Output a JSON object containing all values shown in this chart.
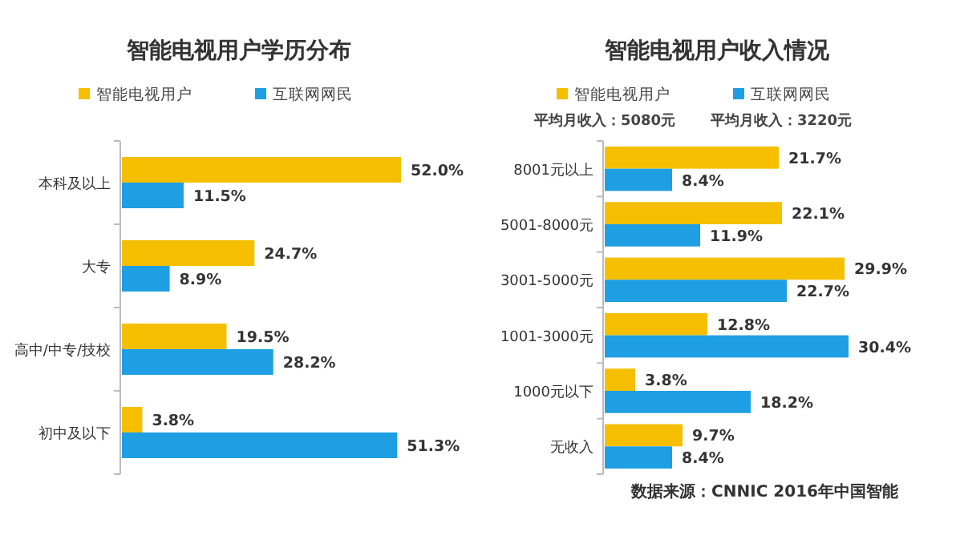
{
  "chart_data": [
    {
      "type": "bar",
      "orientation": "horizontal",
      "title": "智能电视用户学历分布",
      "categories": [
        "本科及以上",
        "大专",
        "高中/中专/技校",
        "初中及以下"
      ],
      "legend": "top",
      "series": [
        {
          "name": "智能电视用户",
          "color": "#f5bf00",
          "values": [
            52.0,
            24.7,
            19.5,
            3.8
          ],
          "value_labels": [
            "52.0%",
            "24.7%",
            "19.5%",
            "3.8%"
          ]
        },
        {
          "name": "互联网网民",
          "color": "#1e9fe3",
          "values": [
            11.5,
            8.9,
            28.2,
            51.3
          ],
          "value_labels": [
            "11.5%",
            "8.9%",
            "28.2%",
            "51.3%"
          ]
        }
      ]
    },
    {
      "type": "bar",
      "orientation": "horizontal",
      "title": "智能电视用户收入情况",
      "categories": [
        "8001元以上",
        "5001-8000元",
        "3001-5000元",
        "1001-3000元",
        "1000元以下",
        "无收入"
      ],
      "legend": "top",
      "annotations": [
        "平均月收入：5080元",
        "平均月收入：3220元",
        "数据来源：CNNIC 2016年中国智能"
      ],
      "series": [
        {
          "name": "智能电视用户",
          "color": "#f5bf00",
          "values": [
            21.7,
            22.1,
            29.9,
            12.8,
            3.8,
            9.7
          ],
          "value_labels": [
            "21.7%",
            "22.1%",
            "29.9%",
            "12.8%",
            "3.8%",
            "9.7%"
          ]
        },
        {
          "name": "互联网网民",
          "color": "#1e9fe3",
          "values": [
            8.4,
            11.9,
            22.7,
            30.4,
            18.2,
            8.4
          ],
          "value_labels": [
            "8.4%",
            "11.9%",
            "22.7%",
            "30.4%",
            "18.2%",
            "8.4%"
          ]
        }
      ]
    }
  ]
}
